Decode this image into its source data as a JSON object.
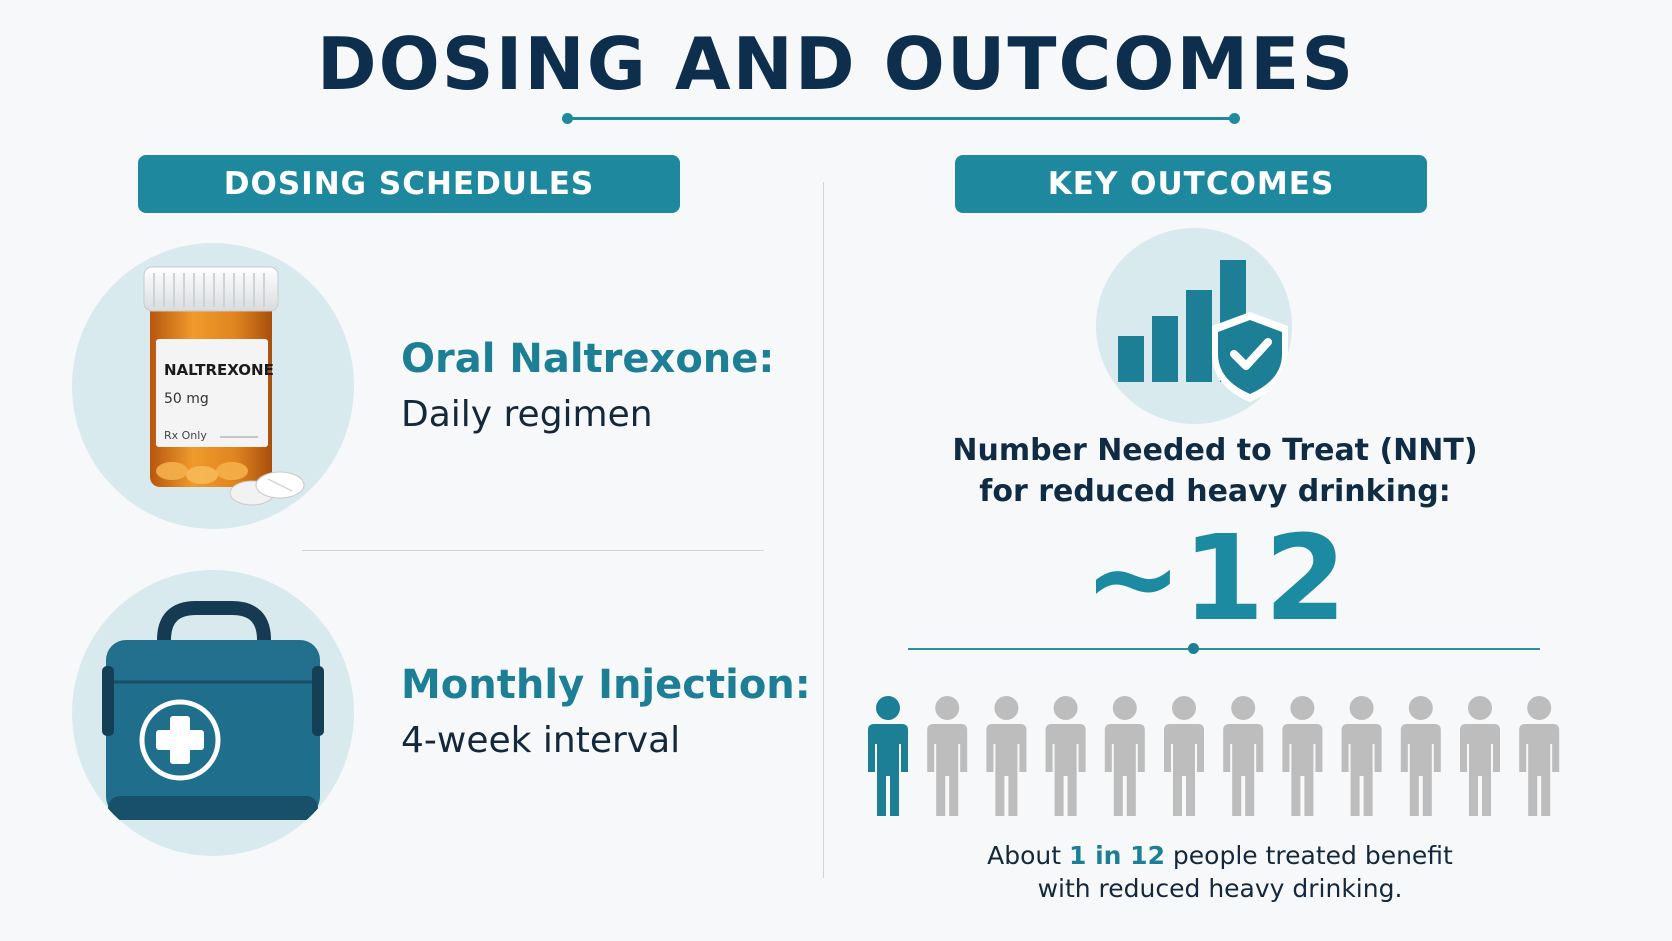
{
  "title": "DOSING AND OUTCOMES",
  "left": {
    "pill": "DOSING SCHEDULES",
    "items": [
      {
        "heading": "Oral Naltrexone:",
        "sub": "Daily regimen",
        "bottle_label": {
          "name": "NALTREXONE",
          "dose": "50 mg",
          "rx": "Rx Only"
        }
      },
      {
        "heading": "Monthly Injection:",
        "sub": "4-week interval"
      }
    ]
  },
  "right": {
    "pill": "KEY OUTCOMES",
    "icon": "bar-chart-shield-check-icon",
    "nnt_line1": "Number Needed to Treat (NNT)",
    "nnt_line2": "for reduced heavy drinking:",
    "nnt_value": "~12",
    "people_total": 12,
    "people_highlighted": 1,
    "caption": {
      "pre": "About ",
      "highlight": "1 in 12",
      "post": " people treated benefit",
      "line2": "with reduced heavy drinking."
    }
  },
  "colors": {
    "accent": "#1d889e",
    "navy": "#0d2f4d",
    "person_highlight": "#1c7f95",
    "person_muted": "#bdbdbd"
  }
}
